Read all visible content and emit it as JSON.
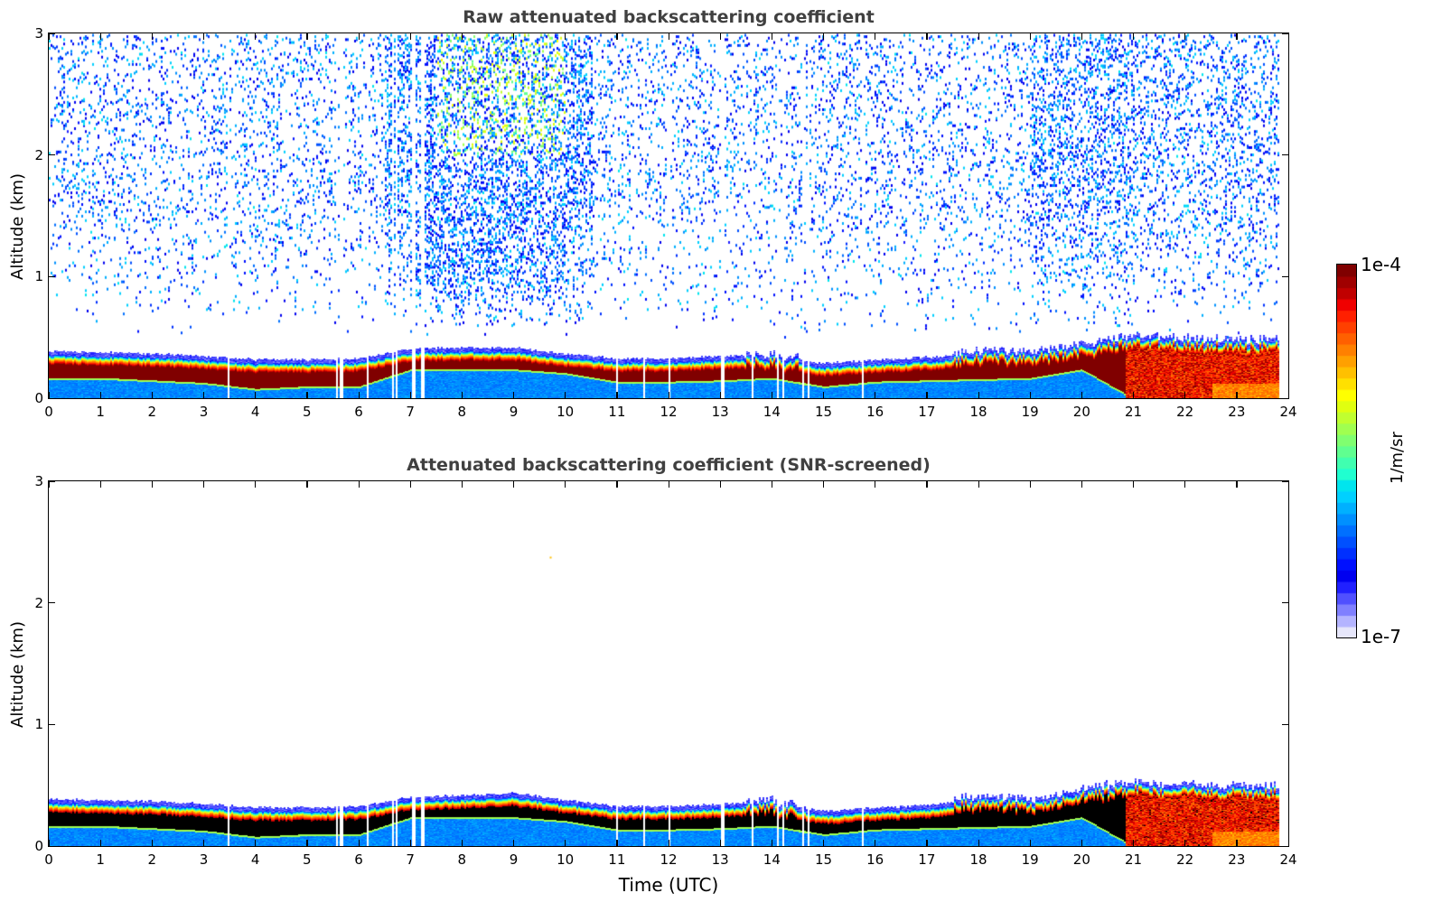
{
  "chart_data": [
    {
      "type": "heatmap",
      "title": "Raw attenuated backscattering coefficient",
      "xlabel": "",
      "ylabel": "Altitude (km)",
      "xlim": [
        0,
        24
      ],
      "ylim": [
        0,
        3
      ],
      "xticks": [
        "0",
        "1",
        "2",
        "3",
        "4",
        "5",
        "6",
        "7",
        "8",
        "9",
        "10",
        "11",
        "12",
        "13",
        "14",
        "15",
        "16",
        "17",
        "18",
        "19",
        "20",
        "21",
        "22",
        "23",
        "24"
      ],
      "yticks": [
        "0",
        "1",
        "2",
        "3"
      ],
      "screened": false,
      "layer_top_km": [
        0.37,
        0.36,
        0.35,
        0.33,
        0.3,
        0.3,
        0.31,
        0.39,
        0.4,
        0.4,
        0.35,
        0.31,
        0.31,
        0.33,
        0.33,
        0.27,
        0.3,
        0.32,
        0.36,
        0.35,
        0.42,
        0.48,
        0.47,
        0.45,
        0.46
      ],
      "core_bottom_km": [
        0.17,
        0.17,
        0.15,
        0.13,
        0.08,
        0.1,
        0.1,
        0.24,
        0.24,
        0.24,
        0.21,
        0.14,
        0.14,
        0.15,
        0.17,
        0.1,
        0.14,
        0.15,
        0.16,
        0.17,
        0.24,
        0.0,
        0.0,
        0.0,
        0.0
      ],
      "notes": [
        "noise aloft strongest 7-10 UTC and 19-21 UTC"
      ]
    },
    {
      "type": "heatmap",
      "title": "Attenuated backscattering coefficient (SNR-screened)",
      "xlabel": "Time (UTC)",
      "ylabel": "Altitude (km)",
      "xlim": [
        0,
        24
      ],
      "ylim": [
        0,
        3
      ],
      "xticks": [
        "0",
        "1",
        "2",
        "3",
        "4",
        "5",
        "6",
        "7",
        "8",
        "9",
        "10",
        "11",
        "12",
        "13",
        "14",
        "15",
        "16",
        "17",
        "18",
        "19",
        "20",
        "21",
        "22",
        "23",
        "24"
      ],
      "yticks": [
        "0",
        "1",
        "2",
        "3"
      ],
      "screened": true,
      "layer_top_km": [
        0.37,
        0.36,
        0.35,
        0.33,
        0.3,
        0.3,
        0.31,
        0.39,
        0.4,
        0.42,
        0.36,
        0.31,
        0.31,
        0.33,
        0.35,
        0.27,
        0.3,
        0.32,
        0.38,
        0.35,
        0.44,
        0.5,
        0.48,
        0.46,
        0.47
      ],
      "core_bottom_km": [
        0.17,
        0.17,
        0.15,
        0.13,
        0.08,
        0.1,
        0.1,
        0.24,
        0.24,
        0.24,
        0.21,
        0.14,
        0.14,
        0.15,
        0.17,
        0.1,
        0.14,
        0.15,
        0.16,
        0.17,
        0.24,
        0.0,
        0.0,
        0.0,
        0.0
      ]
    }
  ],
  "colorbar": {
    "label": "1/m/sr",
    "min_label": "1e-7",
    "max_label": "1e-4",
    "colors": [
      "#e6e6fa",
      "#b4b4ff",
      "#8080ff",
      "#5050ff",
      "#2020ff",
      "#0000f0",
      "#0010ff",
      "#0030ff",
      "#0050ff",
      "#0070ff",
      "#0090ff",
      "#00b0ff",
      "#00d0ff",
      "#00e5ee",
      "#20ffd0",
      "#40ffb0",
      "#60ff90",
      "#80ff70",
      "#a0ff50",
      "#c0ff30",
      "#e0ff10",
      "#ffff00",
      "#ffe000",
      "#ffc000",
      "#ffa000",
      "#ff8000",
      "#ff6000",
      "#ff4000",
      "#ff2000",
      "#f00000",
      "#c00000",
      "#a00000",
      "#800000"
    ]
  }
}
